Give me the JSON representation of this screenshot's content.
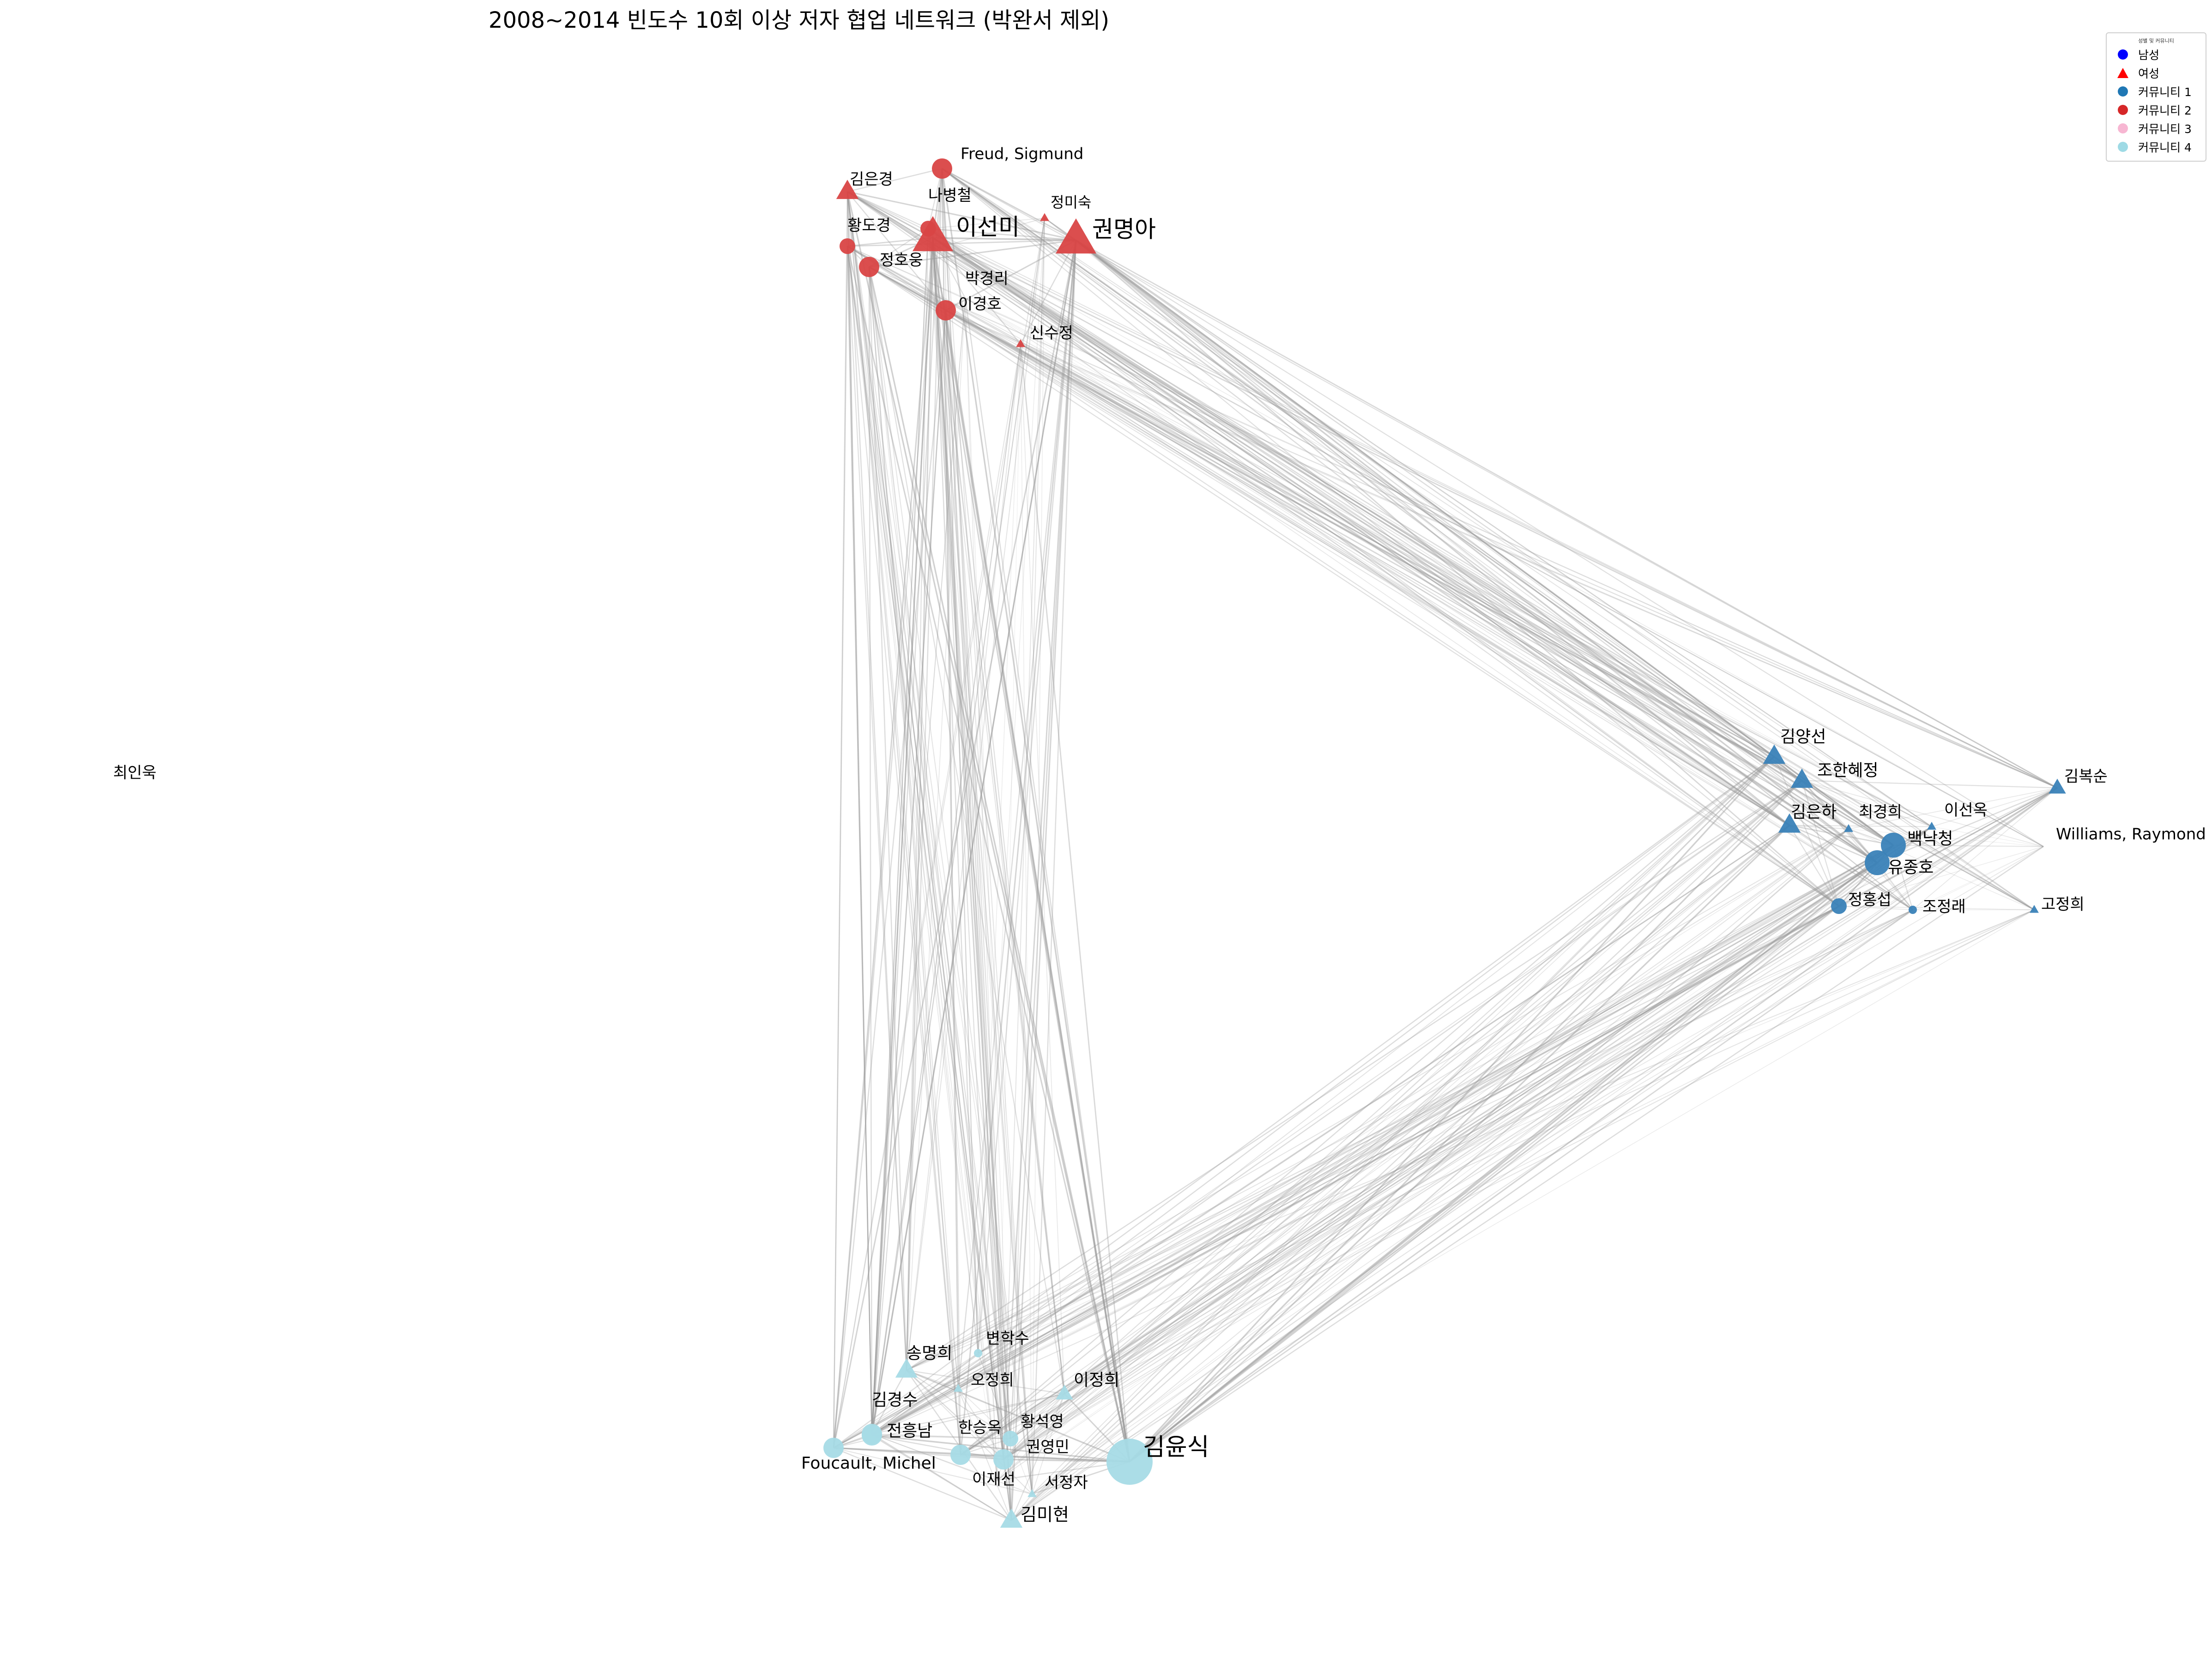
{
  "title": "2008~2014 빈도수 10회 이상 저자 협업 네트워크 (박완서 제외)",
  "legend": {
    "title": "성별 및 커뮤니티",
    "entries": [
      {
        "label": "남성",
        "shape": "circle",
        "color": "#0000ff"
      },
      {
        "label": "여성",
        "shape": "triangle",
        "color": "#ff0000"
      },
      {
        "label": "커뮤니티 1",
        "shape": "circle",
        "color": "#1f77b4"
      },
      {
        "label": "커뮤니티 2",
        "shape": "circle",
        "color": "#d62728"
      },
      {
        "label": "커뮤니티 3",
        "shape": "circle",
        "color": "#f7b6d2"
      },
      {
        "label": "커뮤니티 4",
        "shape": "circle",
        "color": "#9edae5"
      }
    ]
  },
  "community_colors": {
    "1": "#3a82b8",
    "2": "#d94444",
    "3": "#f7b6d2",
    "4": "#a6dbe6"
  },
  "edge_color": "#9a9a9a",
  "nodes": [
    {
      "id": "권명아",
      "gender": "female",
      "community": 2,
      "size": 5
    },
    {
      "id": "이선미",
      "gender": "female",
      "community": 2,
      "size": 5
    },
    {
      "id": "Freud, Sigmund",
      "gender": "male",
      "community": 2,
      "size": 3
    },
    {
      "id": "김은경",
      "gender": "female",
      "community": 2,
      "size": 3
    },
    {
      "id": "나병철",
      "gender": "male",
      "community": 2,
      "size": 2
    },
    {
      "id": "정미숙",
      "gender": "female",
      "community": 2,
      "size": 1
    },
    {
      "id": "황도경",
      "gender": "male",
      "community": 2,
      "size": 2
    },
    {
      "id": "정호웅",
      "gender": "male",
      "community": 2,
      "size": 3
    },
    {
      "id": "박경리",
      "gender": "female",
      "community": 2,
      "size": 0
    },
    {
      "id": "이경호",
      "gender": "male",
      "community": 2,
      "size": 3
    },
    {
      "id": "신수정",
      "gender": "female",
      "community": 2,
      "size": 1
    },
    {
      "id": "김양선",
      "gender": "female",
      "community": 1,
      "size": 3
    },
    {
      "id": "조한혜정",
      "gender": "female",
      "community": 1,
      "size": 3
    },
    {
      "id": "김복순",
      "gender": "female",
      "community": 1,
      "size": 2
    },
    {
      "id": "김은하",
      "gender": "female",
      "community": 1,
      "size": 3
    },
    {
      "id": "최경희",
      "gender": "female",
      "community": 1,
      "size": 1
    },
    {
      "id": "이선옥",
      "gender": "female",
      "community": 1,
      "size": 1
    },
    {
      "id": "백낙청",
      "gender": "male",
      "community": 1,
      "size": 4
    },
    {
      "id": "유종호",
      "gender": "male",
      "community": 1,
      "size": 4
    },
    {
      "id": "Williams, Raymond",
      "gender": "male",
      "community": 1,
      "size": 0
    },
    {
      "id": "정홍섭",
      "gender": "male",
      "community": 1,
      "size": 2
    },
    {
      "id": "조정래",
      "gender": "male",
      "community": 1,
      "size": 1
    },
    {
      "id": "고정희",
      "gender": "female",
      "community": 1,
      "size": 1
    },
    {
      "id": "최인욱",
      "gender": "male",
      "community": 3,
      "size": 0
    },
    {
      "id": "김윤식",
      "gender": "male",
      "community": 4,
      "size": 6
    },
    {
      "id": "송명희",
      "gender": "female",
      "community": 4,
      "size": 3
    },
    {
      "id": "변학수",
      "gender": "male",
      "community": 4,
      "size": 1
    },
    {
      "id": "오정희",
      "gender": "female",
      "community": 4,
      "size": 1
    },
    {
      "id": "이정희",
      "gender": "female",
      "community": 4,
      "size": 2
    },
    {
      "id": "김경수",
      "gender": "male",
      "community": 4,
      "size": 3
    },
    {
      "id": "전흥남",
      "gender": "male",
      "community": 4,
      "size": 3
    },
    {
      "id": "Foucault, Michel",
      "gender": "male",
      "community": 4,
      "size": 3
    },
    {
      "id": "한승옥",
      "gender": "male",
      "community": 4,
      "size": 3
    },
    {
      "id": "황석영",
      "gender": "male",
      "community": 4,
      "size": 2
    },
    {
      "id": "권영민",
      "gender": "male",
      "community": 4,
      "size": 3
    },
    {
      "id": "이재선",
      "gender": "male",
      "community": 4,
      "size": 0
    },
    {
      "id": "서정자",
      "gender": "female",
      "community": 4,
      "size": 1
    },
    {
      "id": "김미현",
      "gender": "female",
      "community": 4,
      "size": 3
    }
  ]
}
